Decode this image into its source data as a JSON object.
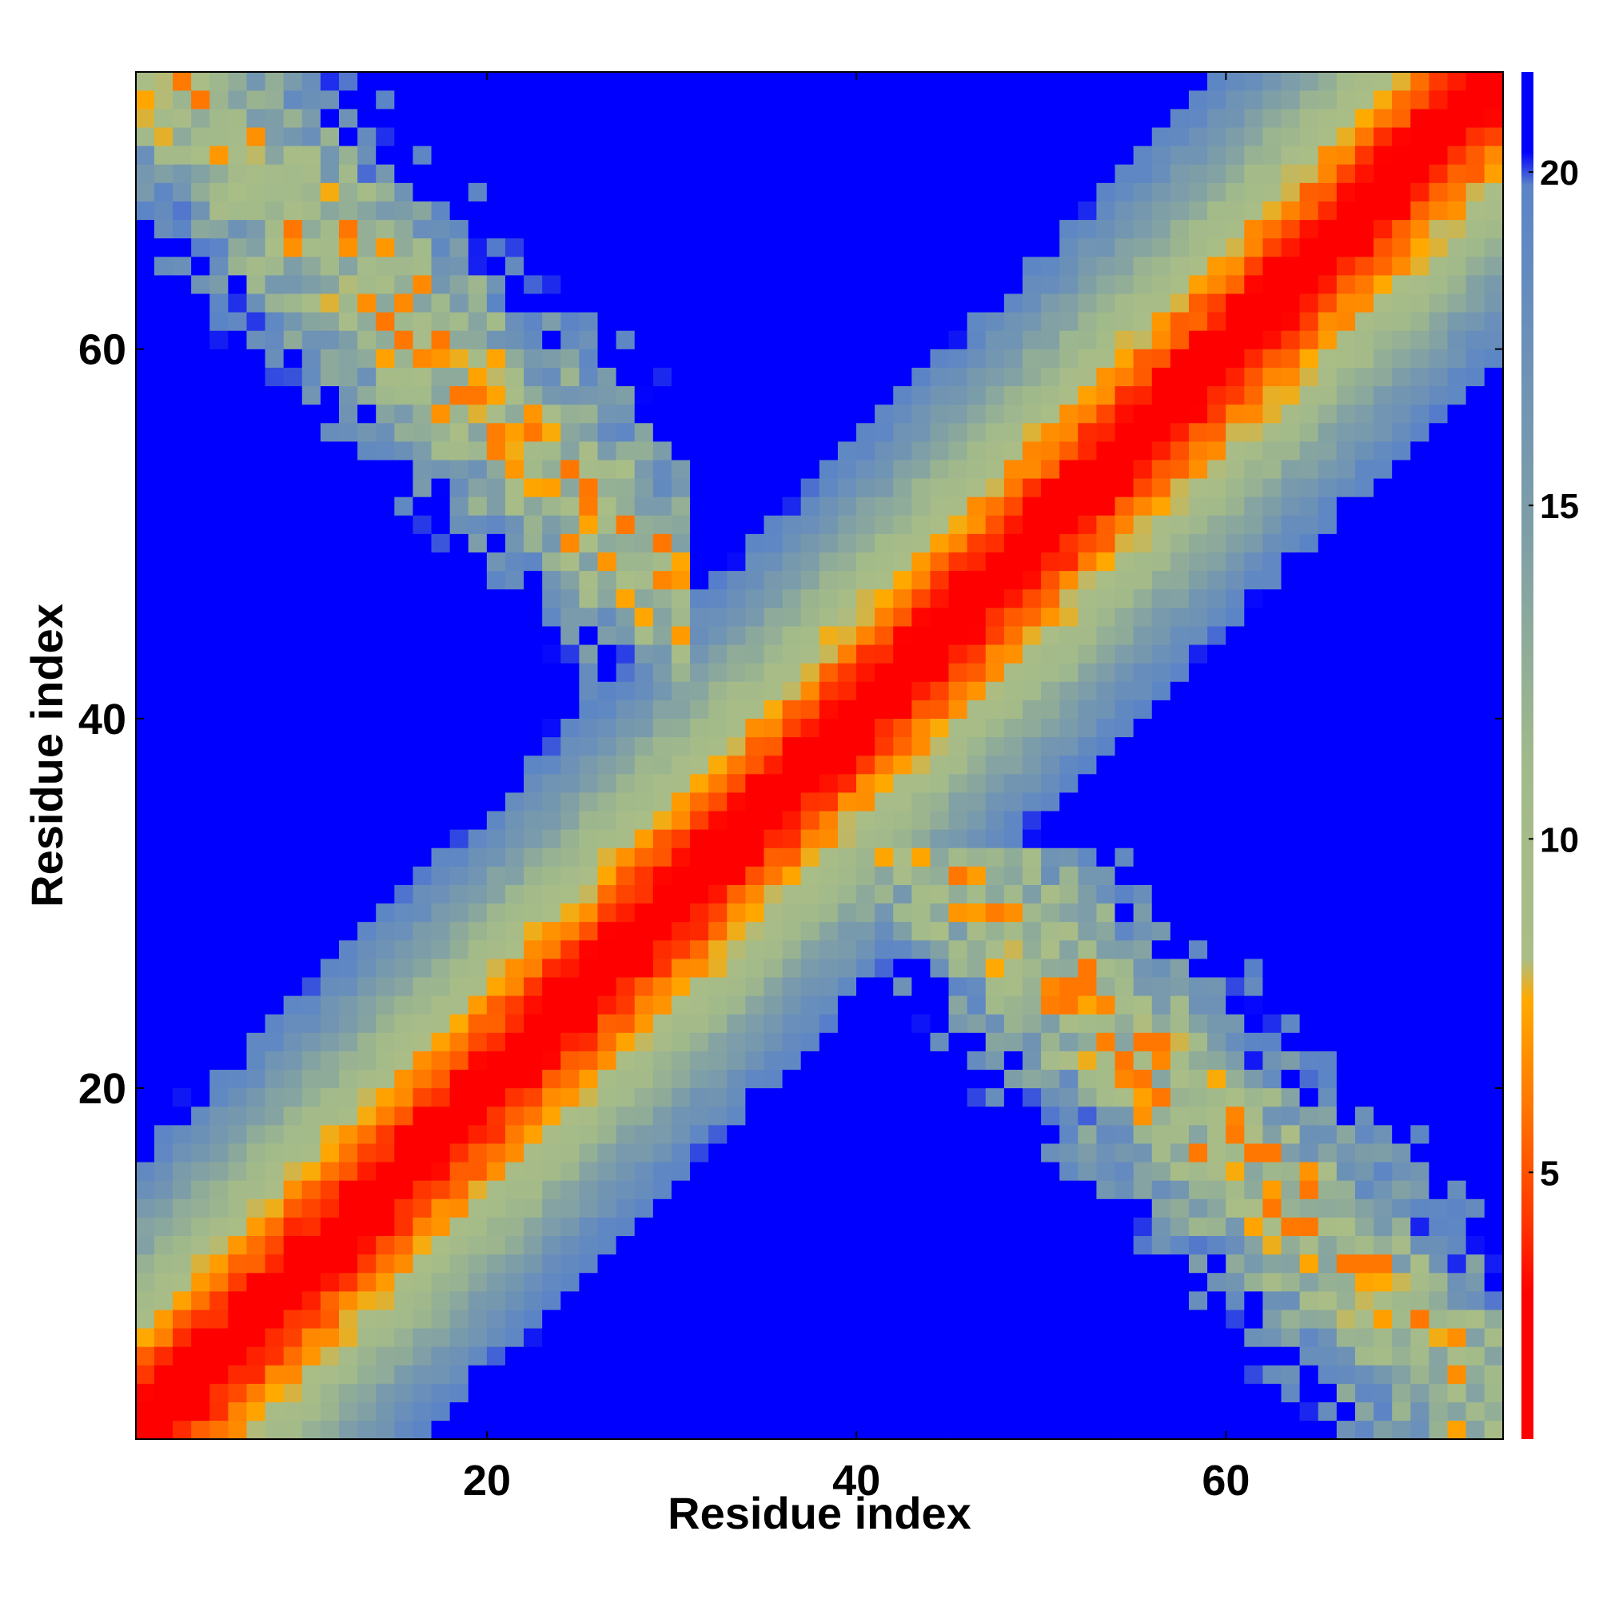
{
  "chart_data": {
    "type": "heatmap",
    "title": "",
    "xlabel": "Residue index",
    "ylabel": "Residue index",
    "xlim": [
      1,
      75
    ],
    "ylim": [
      1,
      75
    ],
    "xticks": [
      20,
      40,
      60
    ],
    "yticks": [
      20,
      40,
      60
    ],
    "residue_count": 74,
    "colorbar": {
      "ticks": [
        5,
        10,
        15,
        20
      ],
      "range": [
        1,
        21.5
      ],
      "stops": [
        {
          "value": 1.0,
          "color": "#ff0000"
        },
        {
          "value": 3.2,
          "color": "#ff0000"
        },
        {
          "value": 4.2,
          "color": "#ff3300"
        },
        {
          "value": 6.0,
          "color": "#ff7700"
        },
        {
          "value": 7.6,
          "color": "#ffaa00"
        },
        {
          "value": 8.2,
          "color": "#aabd86"
        },
        {
          "value": 11.0,
          "color": "#a2ba8a"
        },
        {
          "value": 14.5,
          "color": "#7f9fa6"
        },
        {
          "value": 19.8,
          "color": "#5b84c7"
        },
        {
          "value": 20.3,
          "color": "#0000ff"
        },
        {
          "value": 21.5,
          "color": "#0000ff"
        }
      ]
    },
    "distance_model": {
      "diagonal_slope": 1.25,
      "diagonal_intercept": 1.0,
      "antidiagonal_anchor_sum": 76,
      "antidiagonal_band_halfwidth": 4,
      "antidiagonal_valley": 9.5,
      "antidiagonal_slope": 0.35,
      "antidiagonal_spread": 0.9,
      "antidiagonal_cutoff": 20.3,
      "upper_left_limit": {
        "i_max": 30,
        "j_min": 28
      },
      "lower_right_limit": {
        "i_min": 28,
        "j_max": 32
      }
    },
    "grid": false,
    "colors": {
      "background": "#0000ff",
      "plot_border": "#000000"
    }
  }
}
